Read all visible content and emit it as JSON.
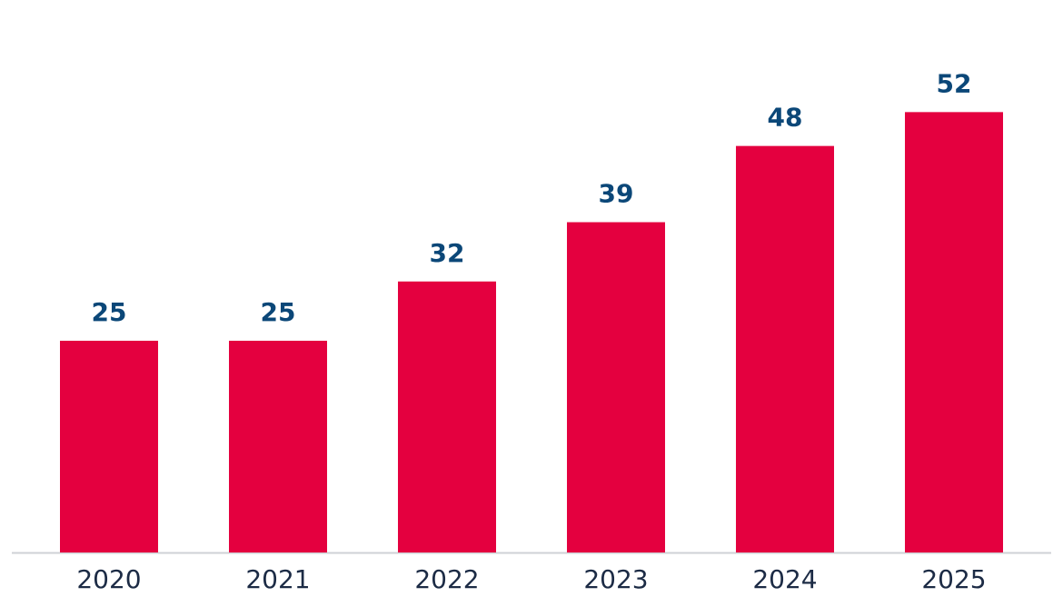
{
  "chart_data": {
    "type": "bar",
    "categories": [
      "2020",
      "2021",
      "2022",
      "2023",
      "2024",
      "2025"
    ],
    "values": [
      25,
      25,
      32,
      39,
      48,
      52
    ],
    "color": "#e4003f"
  }
}
